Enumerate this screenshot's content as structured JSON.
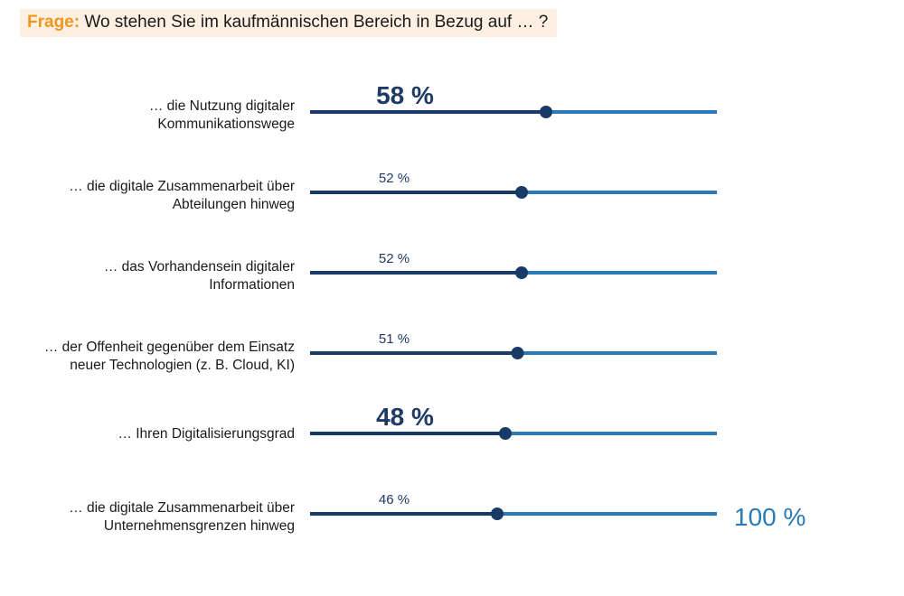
{
  "question": {
    "prefix": "Frage:",
    "text": "Wo stehen Sie im kaufmännischen Bereich in Bezug auf … ?"
  },
  "colors": {
    "filled_line": "#173a66",
    "remaining_line": "#2a7ab8",
    "dot": "#173a66",
    "question_prefix": "#f0961e",
    "question_background": "#fdf0e3",
    "max_label": "#2a7ab8"
  },
  "chart_data": {
    "type": "bar",
    "title": "",
    "xlim": [
      0,
      100
    ],
    "max_label": "100 %",
    "categories": [
      [
        "… die Nutzung digitaler",
        "Kommunikationswege"
      ],
      [
        "… die digitale Zusammenarbeit über",
        "Abteilungen hinweg"
      ],
      [
        "… das Vorhandensein digitaler",
        "Informationen"
      ],
      [
        "… der Offenheit gegenüber dem Einsatz",
        "neuer Technologien (z. B. Cloud, KI)"
      ],
      [
        "… Ihren Digitalisierungsgrad"
      ],
      [
        "… die digitale Zusammenarbeit über",
        "Unternehmensgrenzen hinweg"
      ]
    ],
    "values": [
      58,
      52,
      52,
      51,
      48,
      46
    ],
    "value_labels": [
      "58 %",
      "52 %",
      "52 %",
      "51 %",
      "48 %",
      "46 %"
    ],
    "highlighted": [
      true,
      false,
      false,
      false,
      true,
      false
    ]
  }
}
